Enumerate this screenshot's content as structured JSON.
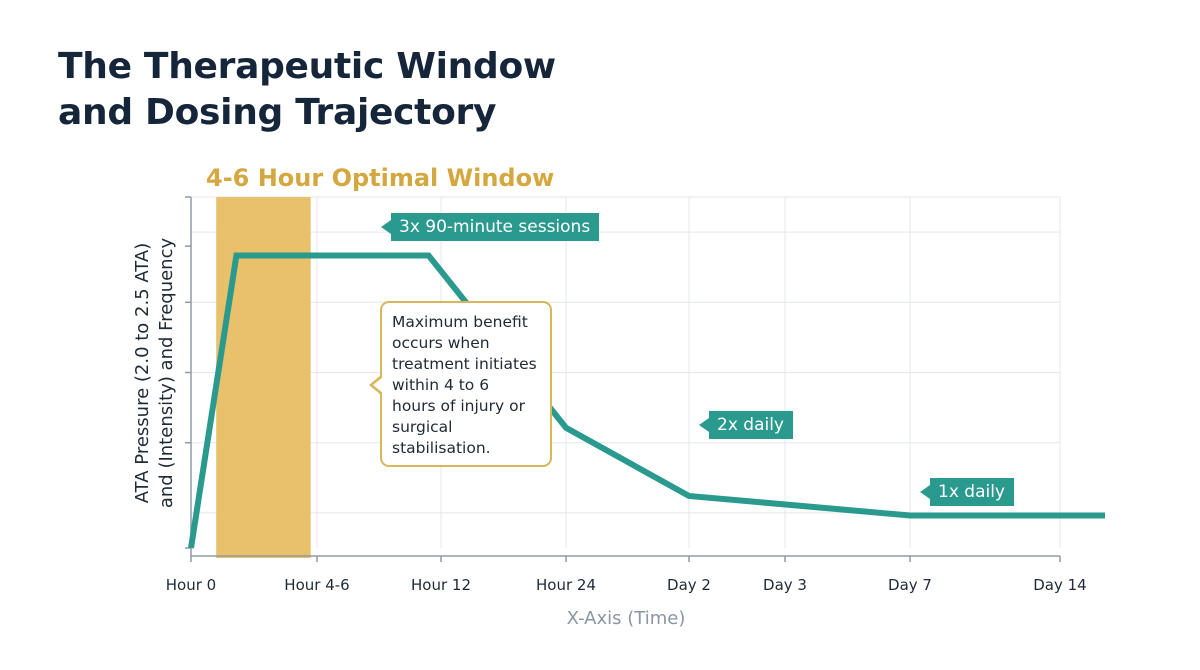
{
  "title_line1": "The Therapeutic Window",
  "title_line2": "and Dosing Trajectory",
  "chart_data": {
    "type": "line",
    "xlabel": "X-Axis (Time)",
    "ylabel_line1": "ATA Pressure (2.0 to 2.5 ATA)",
    "ylabel_line2": "and (Intensity) and Frequency",
    "categories": [
      "Hour 0",
      "Hour 4-6",
      "Hour 12",
      "Hour 24",
      "Day 2",
      "Day 3",
      "Day 7",
      "Day 14"
    ],
    "series": [
      {
        "x": [
          0,
          0.36,
          1.0,
          1.9,
          3.0,
          4.0,
          6.0,
          7.3
        ],
        "y": [
          0,
          0.9,
          0.9,
          0.9,
          0.37,
          0.16,
          0.1,
          0.1
        ]
      }
    ],
    "ylim": [
      0,
      1.08
    ],
    "xlim": [
      -0.5,
      7.3
    ],
    "grid": true,
    "highlight_band": {
      "label": "4-6 Hour Optimal Window",
      "x_start": 0.2,
      "x_end": 0.95,
      "color": "#e8c16a"
    },
    "line_color": "#2b9a8e",
    "annotations": {
      "sessions": "3x 90-minute sessions",
      "twice_daily": "2x daily",
      "once_daily": "1x daily",
      "callout_lines": [
        "Maximum benefit",
        "occurs when",
        "treatment initiates",
        "within 4 to 6",
        "hours of injury or",
        "surgical",
        "stabilisation."
      ]
    }
  }
}
